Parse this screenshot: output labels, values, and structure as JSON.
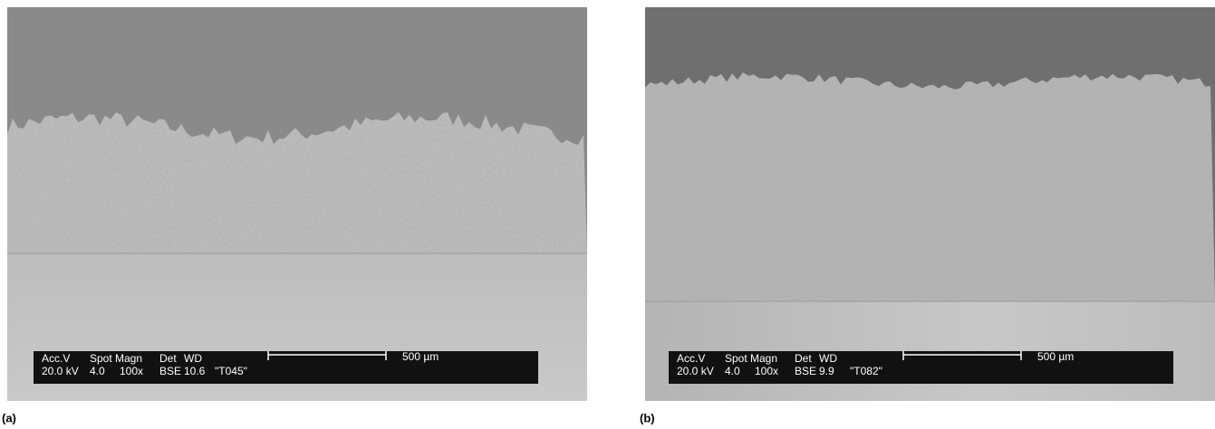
{
  "panels": [
    {
      "label": "(a)",
      "info": {
        "headers": [
          "Acc.V",
          "Spot",
          "Magn",
          "Det",
          "WD"
        ],
        "values": [
          "20.0 kV",
          "4.0",
          "100x",
          "BSE",
          "10.6",
          "\"T045\""
        ],
        "scale": "500 µm"
      }
    },
    {
      "label": "(b)",
      "info": {
        "headers": [
          "Acc.V",
          "Spot",
          "Magn",
          "Det",
          "WD"
        ],
        "values": [
          "20.0 kV",
          "4.0",
          "100x",
          "BSE",
          "9.9",
          "\"T082\""
        ],
        "scale": "500 µm"
      }
    }
  ]
}
